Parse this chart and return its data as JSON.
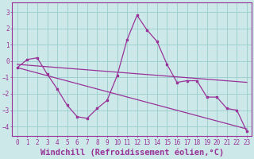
{
  "xlabel": "Windchill (Refroidissement éolien,°C)",
  "background_color": "#cce8e8",
  "line_color": "#993399",
  "xlim": [
    -0.5,
    23.5
  ],
  "ylim": [
    -4.6,
    3.6
  ],
  "yticks": [
    -4,
    -3,
    -2,
    -1,
    0,
    1,
    2,
    3
  ],
  "xticks": [
    0,
    1,
    2,
    3,
    4,
    5,
    6,
    7,
    8,
    9,
    10,
    11,
    12,
    13,
    14,
    15,
    16,
    17,
    18,
    19,
    20,
    21,
    22,
    23
  ],
  "main_x": [
    0,
    1,
    2,
    3,
    4,
    5,
    6,
    7,
    8,
    9,
    10,
    11,
    12,
    13,
    14,
    15,
    16,
    17,
    18,
    19,
    20,
    21,
    22,
    23
  ],
  "main_y": [
    -0.4,
    0.1,
    0.2,
    -0.8,
    -1.7,
    -2.7,
    -3.4,
    -3.5,
    -2.9,
    -2.4,
    -0.9,
    1.3,
    2.8,
    1.9,
    1.2,
    -0.2,
    -1.3,
    -1.2,
    -1.2,
    -2.2,
    -2.2,
    -2.9,
    -3.0,
    -4.3
  ],
  "trend1_x": [
    0,
    23
  ],
  "trend1_y": [
    -0.2,
    -1.3
  ],
  "trend2_x": [
    0,
    23
  ],
  "trend2_y": [
    -0.4,
    -4.15
  ],
  "grid_color": "#99cccc",
  "tick_fontsize": 5.5,
  "xlabel_fontsize": 7.5
}
